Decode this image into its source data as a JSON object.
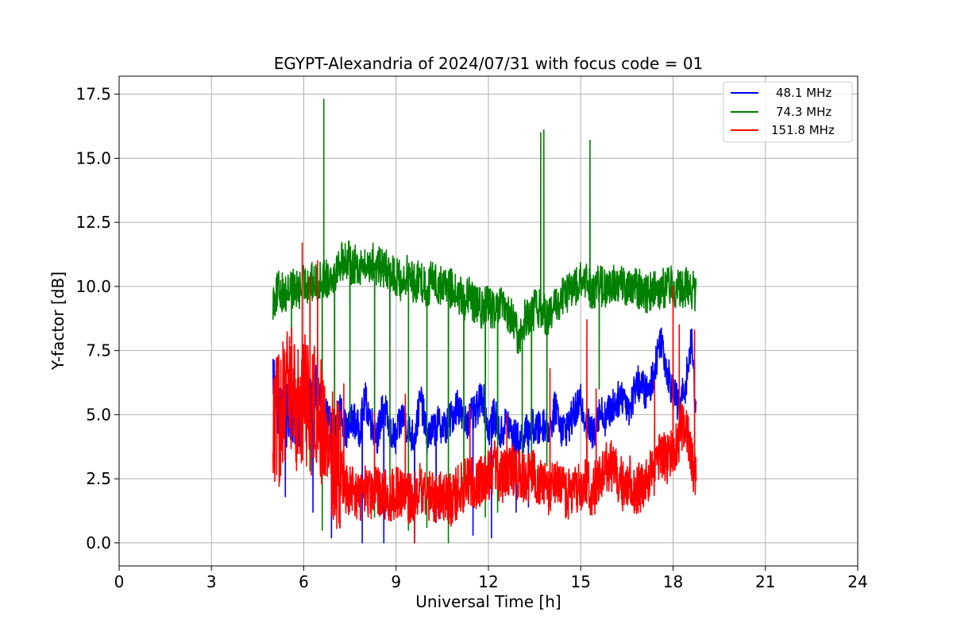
{
  "chart_data": {
    "type": "line",
    "title": "EGYPT-Alexandria of 2024/07/31 with focus code = 01",
    "xlabel": "Universal Time [h]",
    "ylabel": "Y-factor [dB]",
    "xlim": [
      0,
      24
    ],
    "ylim": [
      -0.9,
      18.2
    ],
    "xticks": [
      0,
      3,
      6,
      9,
      12,
      15,
      18,
      21,
      24
    ],
    "xtick_labels": [
      "0",
      "3",
      "6",
      "9",
      "12",
      "15",
      "18",
      "21",
      "24"
    ],
    "yticks": [
      0,
      2.5,
      5,
      7.5,
      10,
      12.5,
      15,
      17.5
    ],
    "ytick_labels": [
      "0.0",
      "2.5",
      "5.0",
      "7.5",
      "10.0",
      "12.5",
      "15.0",
      "17.5"
    ],
    "grid": true,
    "legend_position": "top-right",
    "series": [
      {
        "name": "48.1 MHz",
        "color": "#0000ff",
        "x": [
          5.0,
          5.2,
          5.4,
          5.6,
          5.8,
          6.0,
          6.2,
          6.4,
          6.6,
          6.8,
          7.0,
          7.2,
          7.4,
          7.6,
          7.8,
          8.0,
          8.2,
          8.4,
          8.6,
          8.8,
          9.0,
          9.2,
          9.4,
          9.6,
          9.8,
          10.0,
          10.2,
          10.4,
          10.6,
          10.8,
          11.0,
          11.2,
          11.4,
          11.6,
          11.8,
          12.0,
          12.2,
          12.4,
          12.6,
          12.8,
          13.0,
          13.2,
          13.4,
          13.6,
          13.8,
          14.0,
          14.2,
          14.4,
          14.6,
          14.8,
          15.0,
          15.2,
          15.4,
          15.6,
          15.8,
          16.0,
          16.2,
          16.4,
          16.6,
          16.8,
          17.0,
          17.2,
          17.4,
          17.6,
          17.8,
          18.0,
          18.2,
          18.4,
          18.6,
          18.75
        ],
        "y": [
          6.5,
          5.0,
          4.6,
          5.2,
          4.4,
          6.2,
          5.0,
          5.8,
          5.3,
          4.7,
          4.4,
          5.1,
          4.2,
          4.8,
          4.3,
          5.5,
          4.6,
          4.1,
          5.4,
          4.2,
          4.0,
          4.9,
          4.3,
          4.0,
          5.6,
          4.1,
          4.3,
          4.6,
          4.4,
          4.8,
          5.4,
          4.6,
          4.8,
          5.0,
          5.8,
          4.3,
          4.9,
          4.1,
          4.7,
          4.1,
          3.9,
          4.2,
          4.5,
          4.3,
          4.6,
          4.4,
          5.3,
          4.3,
          4.5,
          5.0,
          5.4,
          4.6,
          4.1,
          5.1,
          4.8,
          5.2,
          5.5,
          5.7,
          5.1,
          6.2,
          6.0,
          5.7,
          6.7,
          8.0,
          6.7,
          5.8,
          5.2,
          6.1,
          7.8,
          5.0
        ],
        "dips": [
          [
            5.4,
            1.8
          ],
          [
            6.3,
            1.2
          ],
          [
            6.9,
            0.2
          ],
          [
            7.9,
            0.0
          ],
          [
            8.6,
            0.0
          ],
          [
            9.6,
            0.0
          ],
          [
            10.3,
            0.8
          ],
          [
            11.5,
            0.3
          ],
          [
            12.1,
            0.2
          ],
          [
            12.9,
            1.2
          ],
          [
            13.3,
            1.4
          ]
        ]
      },
      {
        "name": "74.3 MHz",
        "color": "#008000",
        "x": [
          5.0,
          5.2,
          5.4,
          5.6,
          5.8,
          6.0,
          6.2,
          6.4,
          6.6,
          6.8,
          7.0,
          7.2,
          7.4,
          7.6,
          7.8,
          8.0,
          8.2,
          8.4,
          8.6,
          8.8,
          9.0,
          9.2,
          9.4,
          9.6,
          9.8,
          10.0,
          10.2,
          10.4,
          10.6,
          10.8,
          11.0,
          11.2,
          11.4,
          11.6,
          11.8,
          12.0,
          12.2,
          12.4,
          12.6,
          12.8,
          13.0,
          13.2,
          13.4,
          13.6,
          13.8,
          14.0,
          14.2,
          14.4,
          14.6,
          14.8,
          15.0,
          15.2,
          15.4,
          15.6,
          15.8,
          16.0,
          16.2,
          16.4,
          16.6,
          16.8,
          17.0,
          17.2,
          17.4,
          17.6,
          17.8,
          18.0,
          18.2,
          18.4,
          18.6,
          18.75
        ],
        "y": [
          9.4,
          9.8,
          9.6,
          9.9,
          9.7,
          10.0,
          10.1,
          10.0,
          10.2,
          10.3,
          10.5,
          10.9,
          11.0,
          10.7,
          10.8,
          10.6,
          10.9,
          10.7,
          10.6,
          10.5,
          10.3,
          10.1,
          10.4,
          10.0,
          10.2,
          9.8,
          10.3,
          9.9,
          10.0,
          9.8,
          9.6,
          9.4,
          9.5,
          9.2,
          9.0,
          9.3,
          8.8,
          9.2,
          8.8,
          8.6,
          7.8,
          8.7,
          8.9,
          9.1,
          8.9,
          8.7,
          9.2,
          9.5,
          9.7,
          9.9,
          10.1,
          10.0,
          9.8,
          10.0,
          9.8,
          9.9,
          10.1,
          10.0,
          9.7,
          9.9,
          9.8,
          9.6,
          10.0,
          9.8,
          9.9,
          10.0,
          9.7,
          9.9,
          9.8,
          9.7
        ],
        "spikes": [
          [
            6.65,
            17.3
          ],
          [
            13.7,
            16.0
          ],
          [
            13.8,
            16.1
          ],
          [
            15.3,
            15.7
          ]
        ],
        "dips": [
          [
            5.6,
            7.8
          ],
          [
            6.2,
            2.8
          ],
          [
            6.6,
            0.5
          ],
          [
            7.0,
            1.8
          ],
          [
            7.5,
            4.7
          ],
          [
            8.3,
            1.0
          ],
          [
            8.8,
            2.2
          ],
          [
            9.4,
            0.5
          ],
          [
            10.0,
            0.6
          ],
          [
            10.7,
            0.0
          ],
          [
            11.2,
            1.5
          ],
          [
            11.9,
            1.0
          ],
          [
            12.3,
            1.2
          ],
          [
            13.1,
            1.8
          ],
          [
            13.4,
            2.6
          ],
          [
            13.9,
            3.0
          ],
          [
            15.6,
            6.0
          ]
        ]
      },
      {
        "name": "151.8 MHz",
        "color": "#ff0000",
        "x": [
          5.0,
          5.2,
          5.4,
          5.6,
          5.8,
          6.0,
          6.2,
          6.4,
          6.6,
          6.8,
          7.0,
          7.2,
          7.4,
          7.6,
          7.8,
          8.0,
          8.2,
          8.4,
          8.6,
          8.8,
          9.0,
          9.2,
          9.4,
          9.6,
          9.8,
          10.0,
          10.2,
          10.4,
          10.6,
          10.8,
          11.0,
          11.2,
          11.4,
          11.6,
          11.8,
          12.0,
          12.2,
          12.4,
          12.6,
          12.8,
          13.0,
          13.2,
          13.4,
          13.6,
          13.8,
          14.0,
          14.2,
          14.4,
          14.6,
          14.8,
          15.0,
          15.2,
          15.4,
          15.6,
          15.8,
          16.0,
          16.2,
          16.4,
          16.6,
          16.8,
          17.0,
          17.2,
          17.4,
          17.6,
          17.8,
          18.0,
          18.2,
          18.4,
          18.6,
          18.75
        ],
        "y": [
          4.2,
          4.6,
          5.3,
          6.0,
          4.9,
          5.6,
          4.8,
          5.4,
          4.2,
          3.6,
          3.0,
          2.6,
          2.0,
          1.8,
          1.7,
          1.9,
          1.6,
          2.0,
          1.8,
          1.7,
          1.9,
          1.8,
          1.6,
          1.7,
          2.0,
          1.8,
          1.7,
          1.6,
          1.9,
          1.5,
          1.9,
          2.1,
          2.4,
          2.2,
          2.4,
          2.6,
          2.9,
          2.4,
          2.7,
          2.8,
          2.5,
          2.3,
          2.6,
          2.4,
          2.0,
          1.9,
          2.1,
          1.9,
          1.8,
          2.0,
          2.2,
          2.1,
          1.9,
          2.4,
          2.8,
          2.9,
          2.4,
          2.1,
          2.3,
          2.0,
          2.1,
          2.4,
          2.6,
          3.4,
          3.0,
          3.6,
          4.1,
          4.8,
          3.3,
          2.2
        ],
        "spikes": [
          [
            5.95,
            11.7
          ],
          [
            6.45,
            11.0
          ],
          [
            6.2,
            10.4
          ],
          [
            7.3,
            6.2
          ],
          [
            8.3,
            5.1
          ],
          [
            9.3,
            5.8
          ],
          [
            11.4,
            5.3
          ],
          [
            12.6,
            5.0
          ],
          [
            14.0,
            6.8
          ],
          [
            15.2,
            8.7
          ],
          [
            15.5,
            6.0
          ],
          [
            17.4,
            6.3
          ],
          [
            18.0,
            10.0
          ],
          [
            18.2,
            8.5
          ],
          [
            18.7,
            8.3
          ]
        ],
        "dips": [
          [
            9.6,
            0.0
          ],
          [
            10.6,
            1.0
          ],
          [
            5.2,
            2.2
          ]
        ]
      }
    ]
  }
}
